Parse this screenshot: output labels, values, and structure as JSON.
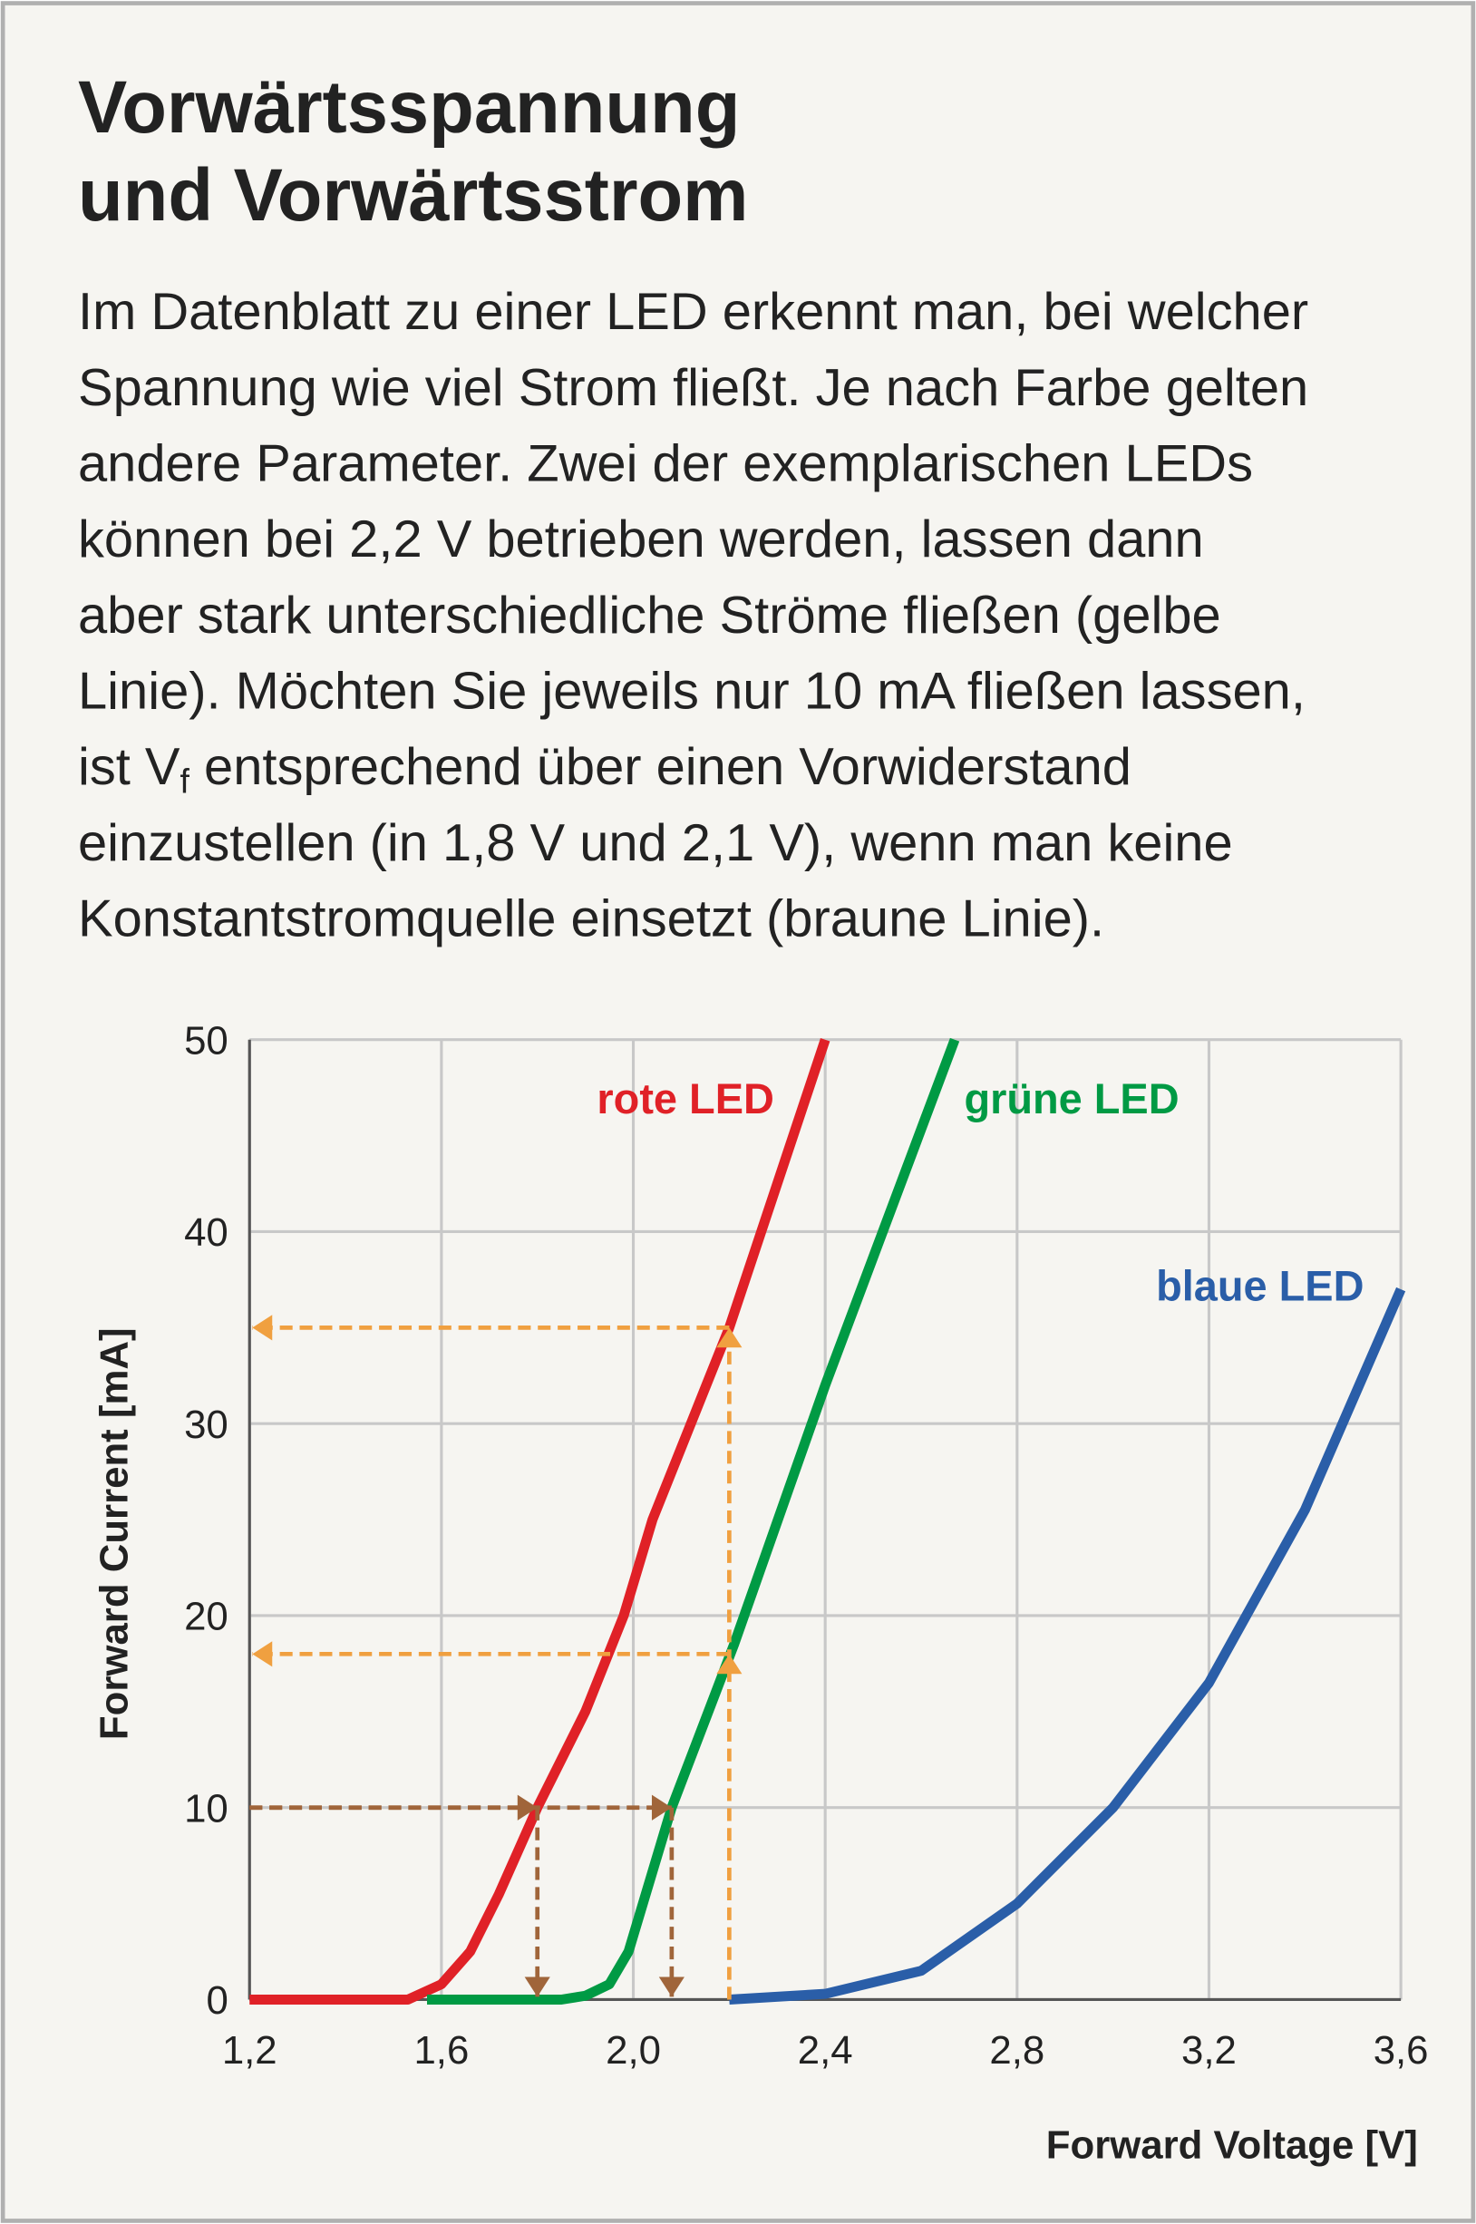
{
  "header": {
    "title_lines": [
      "Vorwärtsspannung",
      "und Vorwärtsstrom"
    ],
    "paragraph": [
      "Im Datenblatt zu einer LED erkennt man, bei welcher",
      "Spannung wie viel Strom fließt. Je nach Farbe gelten",
      "andere Parameter. Zwei der exemplarischen LEDs",
      "können bei 2,2 V betrieben werden, lassen dann",
      "aber stark unterschiedliche Ströme fließen (gelbe",
      "Linie). Möchten Sie jeweils nur 10 mA fließen lassen,",
      [
        "ist V",
        "f",
        " entsprechend über einen Vorwiderstand"
      ],
      "einzustellen (in 1,8 V und 2,1 V), wenn man keine",
      "Konstantstromquelle einsetzt (braune Linie)."
    ]
  },
  "chart_data": {
    "type": "line",
    "x_label": "Forward Voltage [V]",
    "y_label": "Forward Current [mA]",
    "xlim": [
      1.2,
      3.6
    ],
    "ylim": [
      0,
      50
    ],
    "xticks": [
      {
        "value": 1.2,
        "label": "1,2"
      },
      {
        "value": 1.6,
        "label": "1,6"
      },
      {
        "value": 2.0,
        "label": "2,0"
      },
      {
        "value": 2.4,
        "label": "2,4"
      },
      {
        "value": 2.8,
        "label": "2,8"
      },
      {
        "value": 3.2,
        "label": "3,2"
      },
      {
        "value": 3.6,
        "label": "3,6"
      }
    ],
    "yticks": [
      0,
      10,
      20,
      30,
      40,
      50
    ],
    "grid": true,
    "series": [
      {
        "name": "rote LED",
        "color": "#e02127",
        "x": [
          1.2,
          1.53,
          1.6,
          1.66,
          1.72,
          1.8,
          1.9,
          1.98,
          2.04,
          2.2,
          2.3,
          2.4
        ],
        "values": [
          0,
          0,
          0.8,
          2.5,
          5.5,
          10,
          15,
          20,
          25,
          35,
          42.5,
          50
        ]
      },
      {
        "name": "grüne LED",
        "color": "#009a44",
        "x": [
          1.57,
          1.85,
          1.9,
          1.95,
          1.99,
          2.02,
          2.08,
          2.21,
          2.4,
          2.67
        ],
        "values": [
          0,
          0,
          0.2,
          0.8,
          2.5,
          5,
          10,
          18.5,
          32,
          50
        ]
      },
      {
        "name": "blaue LED",
        "color": "#2a5ea8",
        "x": [
          2.2,
          2.4,
          2.6,
          2.8,
          3.0,
          3.2,
          3.4,
          3.6
        ],
        "values": [
          0,
          0.3,
          1.5,
          5,
          10,
          16.5,
          25.5,
          37
        ]
      }
    ],
    "guides": {
      "orange": {
        "color": "#f0a040",
        "voltage": 2.2,
        "currents": [
          35,
          18
        ]
      },
      "brown": {
        "color": "#a0653a",
        "current": 10,
        "voltages": [
          1.8,
          2.08
        ]
      }
    }
  }
}
